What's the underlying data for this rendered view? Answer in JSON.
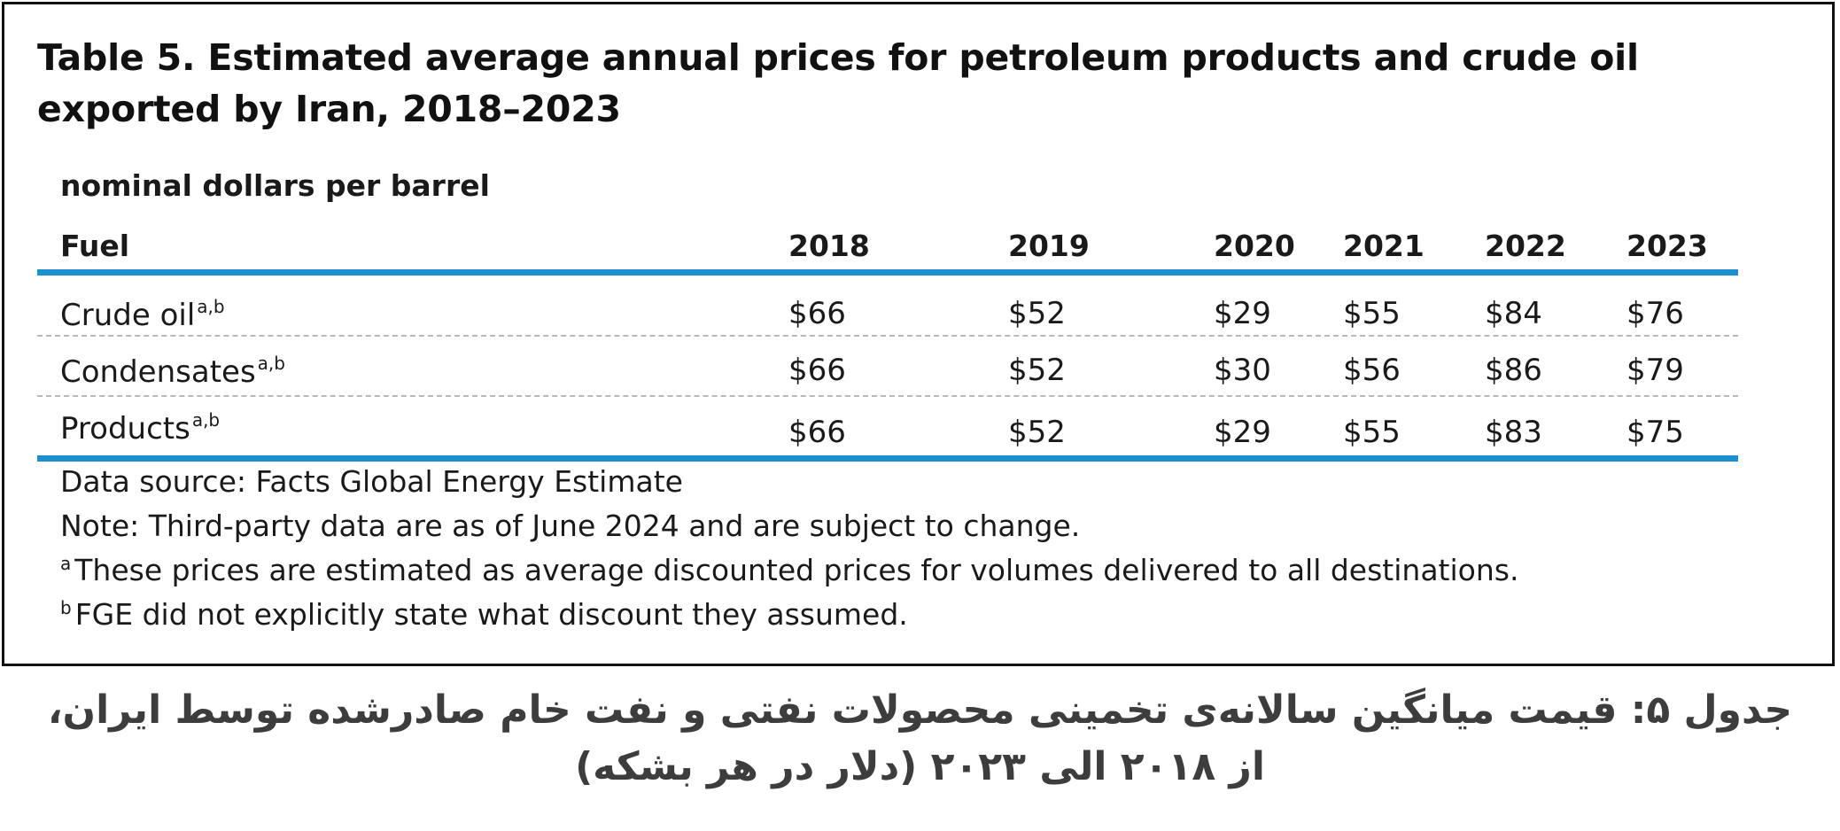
{
  "table": {
    "title": "Table 5. Estimated average annual prices for petroleum products and crude oil exported by Iran, 2018–2023",
    "unit": "nominal dollars per barrel",
    "columns": [
      "Fuel",
      "2018",
      "2019",
      "2020",
      "2021",
      "2022",
      "2023"
    ],
    "rows": [
      {
        "fuel": "Crude oil",
        "note": "a,b",
        "values": [
          "$66",
          "$52",
          "$29",
          "$55",
          "$84",
          "$76"
        ]
      },
      {
        "fuel": "Condensates",
        "note": "a,b",
        "values": [
          "$66",
          "$52",
          "$30",
          "$56",
          "$86",
          "$79"
        ]
      },
      {
        "fuel": "Products",
        "note": "a,b",
        "values": [
          "$66",
          "$52",
          "$29",
          "$55",
          "$83",
          "$75"
        ]
      }
    ],
    "notes": {
      "source": "Data source: Facts Global Energy Estimate",
      "note": "Note: Third-party data are as of June 2024 and are subject to change.",
      "footnote_a_marker": "a",
      "footnote_a": "These prices are estimated as average discounted prices for volumes delivered to all destinations.",
      "footnote_b_marker": "b",
      "footnote_b": "FGE did not explicitly state what discount they assumed."
    }
  },
  "caption": "جدول ۵: قیمت میانگین سالانه‌ی تخمینی محصولات نفتی و نفت خام صادرشده توسط ایران، از ۲۰۱۸ الی ۲۰۲۳ (دلار در هر بشکه)",
  "colors": {
    "rule_accent": "#1b8fd0",
    "dash_rule": "#b8b8b8",
    "border": "#111111",
    "caption_text": "#3d3d3d"
  }
}
